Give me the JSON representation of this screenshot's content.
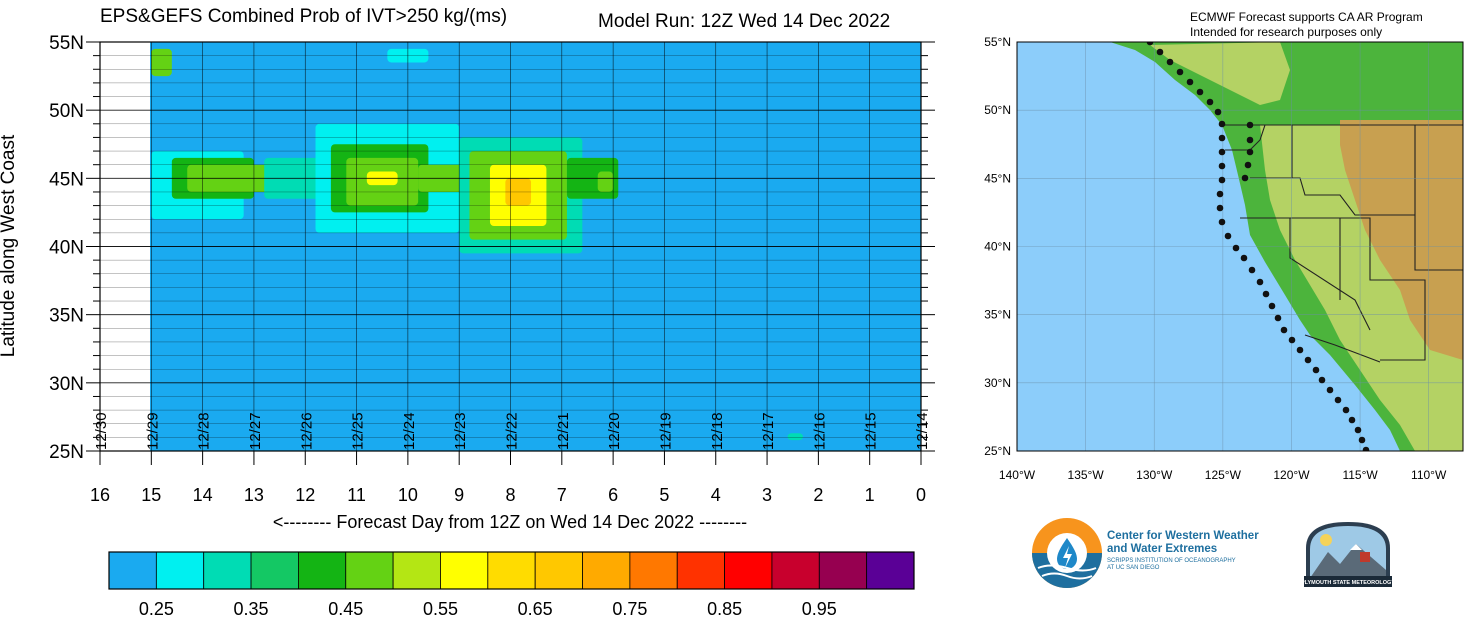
{
  "title": "EPS&GEFS Combined Prob of IVT>250 kg/(ms)",
  "model_run": "Model Run: 12Z Wed 14 Dec 2022",
  "chart_data": {
    "type": "heatmap",
    "title": "EPS&GEFS Combined Prob of IVT>250 kg/(ms)",
    "xlabel": "<-------- Forecast Day from 12Z on Wed 14 Dec 2022 --------",
    "ylabel": "Latitude along West Coast",
    "x_ticks": [
      "16",
      "15",
      "14",
      "13",
      "12",
      "11",
      "10",
      "9",
      "8",
      "7",
      "6",
      "5",
      "4",
      "3",
      "2",
      "1",
      "0"
    ],
    "y_ticks": [
      "55N",
      "50N",
      "45N",
      "40N",
      "35N",
      "30N",
      "25N"
    ],
    "xlim": [
      16,
      0
    ],
    "ylim": [
      25,
      55
    ],
    "date_labels": [
      "12/30",
      "12/29",
      "12/28",
      "12/27",
      "12/26",
      "12/25",
      "12/24",
      "12/23",
      "12/22",
      "12/21",
      "12/20",
      "12/19",
      "12/18",
      "12/17",
      "12/16",
      "12/15",
      "12/14"
    ],
    "grid": true,
    "colorbar": {
      "placement": "bottom",
      "colors": [
        "#1aaaf0",
        "#00f0f0",
        "#00dcb4",
        "#14c864",
        "#14b414",
        "#64d214",
        "#b4e614",
        "#ffff00",
        "#ffdc00",
        "#ffc800",
        "#ffaa00",
        "#ff7800",
        "#ff3200",
        "#ff0000",
        "#c8002d",
        "#960050",
        "#5a0096"
      ],
      "tick_labels": [
        "0.25",
        "0.35",
        "0.45",
        "0.55",
        "0.65",
        "0.75",
        "0.85",
        "0.95"
      ]
    },
    "regions": [
      {
        "day_range": [
          15.0,
          14.6
        ],
        "lat_range": [
          52.5,
          54.5
        ],
        "prob": 0.45
      },
      {
        "day_range": [
          15.0,
          14.7
        ],
        "lat_range": [
          53.0,
          54.0
        ],
        "prob": 0.5
      },
      {
        "day_range": [
          15.0,
          13.2
        ],
        "lat_range": [
          42.0,
          47.0
        ],
        "prob": 0.3
      },
      {
        "day_range": [
          14.6,
          13.0
        ],
        "lat_range": [
          43.5,
          46.5
        ],
        "prob": 0.4
      },
      {
        "day_range": [
          14.3,
          12.6
        ],
        "lat_range": [
          44.0,
          46.0
        ],
        "prob": 0.45
      },
      {
        "day_range": [
          13.6,
          12.0
        ],
        "lat_range": [
          44.5,
          45.5
        ],
        "prob": 0.5
      },
      {
        "day_range": [
          12.8,
          11.2
        ],
        "lat_range": [
          43.5,
          46.5
        ],
        "prob": 0.35
      },
      {
        "day_range": [
          11.8,
          9.0
        ],
        "lat_range": [
          41.0,
          49.0
        ],
        "prob": 0.3
      },
      {
        "day_range": [
          11.5,
          9.6
        ],
        "lat_range": [
          42.5,
          47.5
        ],
        "prob": 0.4
      },
      {
        "day_range": [
          11.2,
          9.8
        ],
        "lat_range": [
          43.0,
          46.5
        ],
        "prob": 0.45
      },
      {
        "day_range": [
          11.0,
          10.0
        ],
        "lat_range": [
          43.5,
          46.0
        ],
        "prob": 0.5
      },
      {
        "day_range": [
          10.8,
          10.2
        ],
        "lat_range": [
          44.5,
          45.5
        ],
        "prob": 0.55
      },
      {
        "day_range": [
          10.4,
          9.6
        ],
        "lat_range": [
          53.5,
          54.5
        ],
        "prob": 0.3
      },
      {
        "day_range": [
          9.8,
          8.8
        ],
        "lat_range": [
          44.0,
          46.0
        ],
        "prob": 0.45
      },
      {
        "day_range": [
          9.0,
          6.6
        ],
        "lat_range": [
          39.5,
          48.0
        ],
        "prob": 0.35
      },
      {
        "day_range": [
          8.8,
          6.9
        ],
        "lat_range": [
          40.5,
          47.0
        ],
        "prob": 0.45
      },
      {
        "day_range": [
          8.6,
          7.1
        ],
        "lat_range": [
          41.0,
          46.5
        ],
        "prob": 0.5
      },
      {
        "day_range": [
          8.4,
          7.3
        ],
        "lat_range": [
          41.5,
          46.0
        ],
        "prob": 0.55
      },
      {
        "day_range": [
          8.3,
          7.5
        ],
        "lat_range": [
          42.0,
          45.5
        ],
        "prob": 0.6
      },
      {
        "day_range": [
          8.1,
          7.6
        ],
        "lat_range": [
          43.0,
          45.0
        ],
        "prob": 0.65
      },
      {
        "day_range": [
          6.9,
          5.9
        ],
        "lat_range": [
          43.5,
          46.5
        ],
        "prob": 0.4
      },
      {
        "day_range": [
          6.3,
          6.0
        ],
        "lat_range": [
          44.0,
          45.5
        ],
        "prob": 0.45
      },
      {
        "day_range": [
          2.6,
          2.3
        ],
        "lat_range": [
          25.8,
          26.3
        ],
        "prob": 0.35
      }
    ]
  },
  "map": {
    "note_line1": "ECMWF Forecast supports CA AR Program",
    "note_line2": "Intended for research purposes only",
    "lat_labels": [
      "55°N",
      "50°N",
      "45°N",
      "40°N",
      "35°N",
      "30°N",
      "25°N"
    ],
    "lon_labels": [
      "140°W",
      "135°W",
      "130°W",
      "125°W",
      "120°W",
      "115°W",
      "110°W"
    ],
    "colors": {
      "ocean": "#8ccdfa",
      "land_low": "#4cb43c",
      "land_mid": "#b4d264",
      "land_high": "#c8a050"
    }
  },
  "logos": {
    "cw3e_line1": "Center for Western Weather",
    "cw3e_line2": "and Water Extremes",
    "cw3e_sub1": "SCRIPPS INSTITUTION OF OCEANOGRAPHY",
    "cw3e_sub2": "AT UC SAN DIEGO",
    "plymouth": "PLYMOUTH STATE METEOROLOGY"
  }
}
